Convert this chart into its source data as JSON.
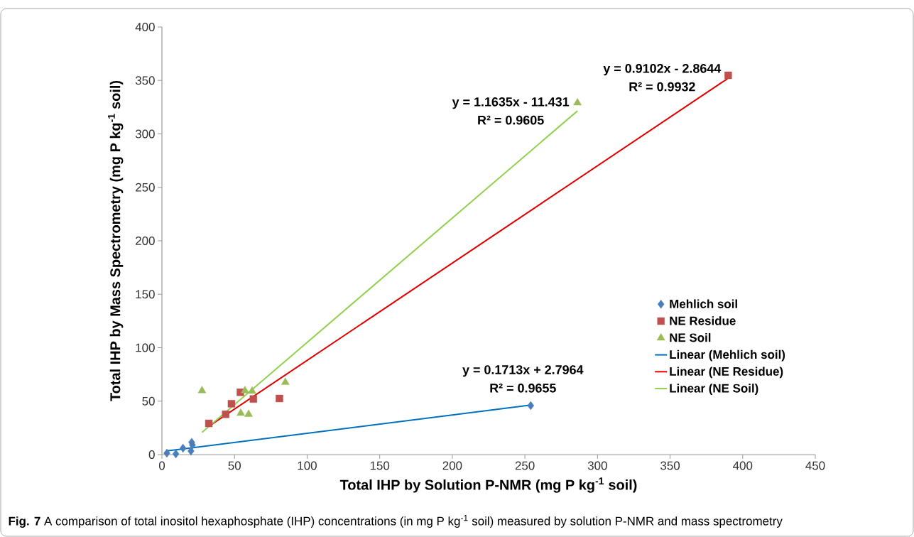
{
  "chart_data": {
    "type": "scatter",
    "xlabel": "Total IHP by Solution P-NMR (mg P kg$^{-1}$ soil)",
    "ylabel": "Total IHP by Mass Spectrometry (mg P kg$^{-1}$ soil)",
    "xlim": [
      0,
      450
    ],
    "ylim": [
      0,
      400
    ],
    "xticks": [
      0,
      50,
      100,
      150,
      200,
      250,
      300,
      350,
      400,
      450
    ],
    "yticks": [
      0,
      50,
      100,
      150,
      200,
      250,
      300,
      350,
      400
    ],
    "grid": false,
    "legend": "right",
    "series": [
      {
        "name": "Mehlich soil",
        "marker": "diamond",
        "color": "#4a7ebb",
        "x": [
          3.4,
          9.6,
          14.5,
          20.5,
          21,
          20,
          254
        ],
        "values": [
          1.3,
          0.7,
          6,
          11.5,
          9,
          3.3,
          45.8
        ]
      },
      {
        "name": "NE Residue",
        "marker": "square",
        "color": "#c0504d",
        "x": [
          32.3,
          43.9,
          47.9,
          54,
          63,
          80.9,
          390
        ],
        "values": [
          29.2,
          37.7,
          47.6,
          58.3,
          52,
          52.5,
          354.8
        ]
      },
      {
        "name": "NE Soil",
        "marker": "triangle",
        "color": "#9bbb59",
        "x": [
          27.6,
          57.2,
          62.1,
          54.3,
          59.7,
          85,
          286.2
        ],
        "values": [
          59.8,
          59.8,
          59.3,
          38.7,
          37.7,
          67.6,
          329
        ]
      },
      {
        "name": "Linear (Mehlich soil)",
        "type": "line",
        "marker": "none",
        "color": "#0070c0",
        "x": [
          3.4,
          254
        ],
        "values": [
          3.4,
          46.3
        ]
      },
      {
        "name": "Linear (NE Residue)",
        "type": "line",
        "marker": "none",
        "color": "#e00000",
        "x": [
          32.3,
          390
        ],
        "values": [
          26.5,
          352.1
        ]
      },
      {
        "name": "Linear (NE Soil)",
        "type": "line",
        "marker": "none",
        "color": "#92d050",
        "x": [
          27.6,
          286.2
        ],
        "values": [
          20.7,
          321.5
        ]
      }
    ],
    "annotations": [
      "y = 0.1713x + 2.7964",
      "R² = 0.9655",
      "y = 0.9102x - 2.8644",
      "R² = 0.9932",
      "y = 1.1635x - 11.431",
      "R² = 0.9605",
      "**Fig. 7** A comparison of total inositol hexaphosphate (IHP) concentrations (in mg P kg$^{-1}$ soil) measured by solution P-NMR and mass spectrometry"
    ]
  }
}
